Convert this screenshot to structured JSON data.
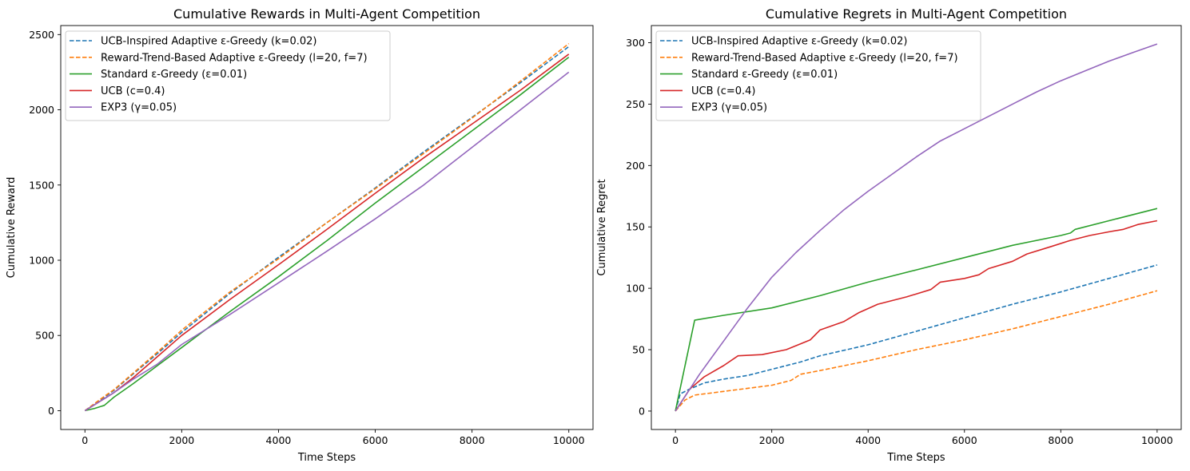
{
  "chart_data": [
    {
      "type": "line",
      "title": "Cumulative Rewards in Multi-Agent Competition",
      "xlabel": "Time Steps",
      "ylabel": "Cumulative Reward",
      "xlim": [
        -500,
        10500
      ],
      "ylim": [
        -125,
        2560
      ],
      "xticks": [
        0,
        2000,
        4000,
        6000,
        8000,
        10000
      ],
      "yticks": [
        0,
        500,
        1000,
        1500,
        2000,
        2500
      ],
      "grid": false,
      "legend_position": "top-left",
      "series": [
        {
          "name": "UCB-Inspired Adaptive ε-Greedy (k=0.02)",
          "color": "#1f77b4",
          "dash": "dashed",
          "x": [
            0,
            200,
            400,
            600,
            1000,
            1500,
            2000,
            3000,
            4000,
            5000,
            6000,
            7000,
            8000,
            9000,
            10000
          ],
          "y": [
            0,
            45,
            90,
            135,
            245,
            380,
            520,
            780,
            1020,
            1250,
            1480,
            1720,
            1950,
            2180,
            2420
          ]
        },
        {
          "name": "Reward-Trend-Based Adaptive ε-Greedy (l=20, f=7)",
          "color": "#ff7f0e",
          "dash": "dashed",
          "x": [
            0,
            200,
            400,
            600,
            1000,
            1500,
            2000,
            3000,
            4000,
            5000,
            6000,
            7000,
            8000,
            9000,
            10000
          ],
          "y": [
            0,
            48,
            95,
            140,
            250,
            390,
            535,
            790,
            1010,
            1250,
            1475,
            1710,
            1945,
            2190,
            2440
          ]
        },
        {
          "name": "Standard ε-Greedy (ε=0.01)",
          "color": "#2ca02c",
          "dash": "solid",
          "x": [
            0,
            200,
            400,
            600,
            1000,
            1500,
            2000,
            3000,
            4000,
            5000,
            6000,
            7000,
            8000,
            9000,
            10000
          ],
          "y": [
            0,
            15,
            35,
            90,
            180,
            300,
            420,
            660,
            890,
            1130,
            1380,
            1620,
            1860,
            2100,
            2350
          ]
        },
        {
          "name": "UCB (c=0.4)",
          "color": "#d62728",
          "dash": "solid",
          "x": [
            0,
            200,
            400,
            600,
            1000,
            1500,
            2000,
            3000,
            4000,
            5000,
            6000,
            7000,
            8000,
            9000,
            10000
          ],
          "y": [
            0,
            40,
            80,
            120,
            220,
            360,
            500,
            740,
            970,
            1205,
            1445,
            1680,
            1905,
            2130,
            2370
          ]
        },
        {
          "name": "EXP3 (γ=0.05)",
          "color": "#9467bd",
          "dash": "solid",
          "x": [
            0,
            200,
            400,
            600,
            1000,
            1500,
            2000,
            3000,
            4000,
            5000,
            6000,
            7000,
            8000,
            9000,
            10000
          ],
          "y": [
            0,
            40,
            80,
            120,
            210,
            310,
            440,
            640,
            850,
            1060,
            1275,
            1500,
            1750,
            2000,
            2250
          ]
        }
      ]
    },
    {
      "type": "line",
      "title": "Cumulative Regrets in Multi-Agent Competition",
      "xlabel": "Time Steps",
      "ylabel": "Cumulative Regret",
      "xlim": [
        -500,
        10500
      ],
      "ylim": [
        -15,
        314
      ],
      "xticks": [
        0,
        2000,
        4000,
        6000,
        8000,
        10000
      ],
      "yticks": [
        0,
        50,
        100,
        150,
        200,
        250,
        300
      ],
      "grid": false,
      "legend_position": "top-left",
      "series": [
        {
          "name": "UCB-Inspired Adaptive ε-Greedy (k=0.02)",
          "color": "#1f77b4",
          "dash": "dashed",
          "x": [
            0,
            100,
            300,
            600,
            1000,
            1500,
            2000,
            2600,
            3000,
            4000,
            5000,
            6000,
            7000,
            8000,
            9000,
            10000
          ],
          "y": [
            0,
            14,
            18,
            23,
            26,
            29,
            34,
            40,
            45,
            54,
            65,
            76,
            87,
            97,
            108,
            119
          ]
        },
        {
          "name": "Reward-Trend-Based Adaptive ε-Greedy (l=20, f=7)",
          "color": "#ff7f0e",
          "dash": "dashed",
          "x": [
            0,
            200,
            400,
            1000,
            2000,
            2400,
            2600,
            3000,
            4000,
            5000,
            6000,
            7000,
            8000,
            9000,
            10000
          ],
          "y": [
            0,
            9,
            13,
            16,
            21,
            25,
            30,
            33,
            41,
            50,
            58,
            67,
            77,
            87,
            98
          ]
        },
        {
          "name": "Standard ε-Greedy (ε=0.01)",
          "color": "#2ca02c",
          "dash": "solid",
          "x": [
            0,
            400,
            1000,
            2000,
            3000,
            4000,
            5000,
            6000,
            7000,
            8000,
            8200,
            8300,
            9000,
            10000
          ],
          "y": [
            0,
            74,
            78,
            84,
            94,
            105,
            115,
            125,
            135,
            143,
            145,
            148,
            155,
            165
          ]
        },
        {
          "name": "UCB (c=0.4)",
          "color": "#d62728",
          "dash": "solid",
          "x": [
            0,
            300,
            600,
            1000,
            1300,
            1800,
            2300,
            2800,
            3000,
            3500,
            3800,
            4200,
            4800,
            5300,
            5500,
            6000,
            6300,
            6500,
            7000,
            7300,
            7800,
            8200,
            8600,
            9000,
            9300,
            9600,
            10000
          ],
          "y": [
            0,
            18,
            28,
            37,
            45,
            46,
            50,
            58,
            66,
            73,
            80,
            87,
            93,
            99,
            105,
            108,
            111,
            116,
            122,
            128,
            134,
            139,
            143,
            146,
            148,
            152,
            155
          ]
        },
        {
          "name": "EXP3 (γ=0.05)",
          "color": "#9467bd",
          "dash": "solid",
          "x": [
            0,
            500,
            1000,
            1500,
            2000,
            2500,
            3000,
            3500,
            4000,
            4500,
            5000,
            5500,
            6000,
            6500,
            7000,
            7500,
            8000,
            8500,
            9000,
            9500,
            10000
          ],
          "y": [
            0,
            30,
            57,
            84,
            109,
            129,
            147,
            164,
            179,
            193,
            207,
            220,
            230,
            240,
            250,
            260,
            269,
            277,
            285,
            292,
            299
          ]
        }
      ]
    }
  ]
}
